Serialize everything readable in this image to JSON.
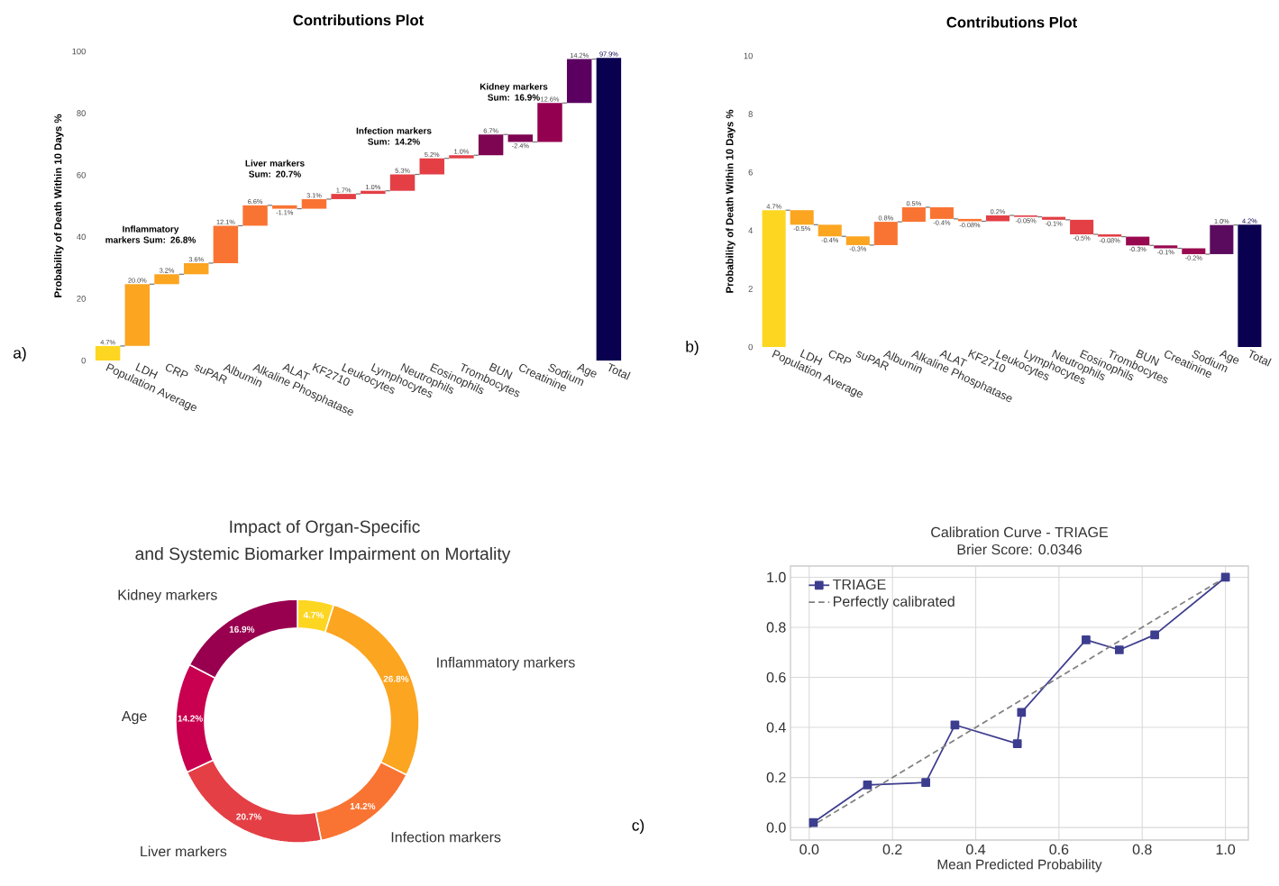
{
  "chart_data": [
    {
      "type": "bar",
      "title": "Contributions Plot",
      "ylabel": "Probability of Death Within 10 Days %",
      "categories": [
        "Population Average",
        "LDH",
        "CRP",
        "suPAR",
        "Albumin",
        "Alkaline Phosphatase",
        "ALAT",
        "KF2710",
        "Leukocytes",
        "Lymphocytes",
        "Neutrophils",
        "Eosinophils",
        "Trombocytes",
        "BUN",
        "Creatinine",
        "Sodium",
        "Age",
        "Total"
      ],
      "values": [
        4.7,
        20.0,
        3.2,
        3.6,
        12.1,
        6.6,
        -1.1,
        3.1,
        1.7,
        1.0,
        5.3,
        5.2,
        1.0,
        6.7,
        -2.4,
        12.6,
        14.2,
        97.9
      ],
      "base": [
        0,
        4.7,
        24.7,
        27.9,
        31.5,
        43.6,
        50.2,
        49.1,
        52.2,
        53.9,
        54.9,
        60.2,
        65.4,
        66.4,
        73.1,
        70.7,
        83.3,
        0
      ],
      "colors": [
        "#fdd622",
        "#fba520",
        "#fba520",
        "#fba520",
        "#f97432",
        "#f97432",
        "#f97432",
        "#f97432",
        "#e33f45",
        "#e33f45",
        "#e33f45",
        "#e33f45",
        "#e33f45",
        "#7d0552",
        "#7d0552",
        "#930050",
        "#5b0060",
        "#0a0050"
      ],
      "value_labels": [
        "4.7%",
        "20.0%",
        "3.2%",
        "3.6%",
        "12.1%",
        "6.6%",
        "-1.1%",
        "3.1%",
        "1.7%",
        "1.0%",
        "5.3%",
        "5.2%",
        "1.0%",
        "6.7%",
        "-2.4%",
        "12.6%",
        "14.2%",
        "97.9%"
      ],
      "ylim": [
        0,
        100
      ],
      "yticks": [
        0,
        20,
        40,
        60,
        80,
        100
      ],
      "annotations": [
        "a)",
        "Inflammatory markers Sum: 26.8%",
        "Liver markers Sum: 20.7%",
        "Infection markers Sum: 14.2%",
        "Kidney markers Sum: 16.9%"
      ]
    },
    {
      "type": "bar",
      "title": "Contributions Plot",
      "ylabel": "Probability of Death Within 10 Days %",
      "categories": [
        "Population Average",
        "LDH",
        "CRP",
        "suPAR",
        "Albumin",
        "Alkaline Phosphatase",
        "ALAT",
        "KF2710",
        "Leukocytes",
        "Lymphocytes",
        "Neutrophils",
        "Eosinophils",
        "Trombocytes",
        "BUN",
        "Creatinine",
        "Sodium",
        "Age",
        "Total"
      ],
      "values": [
        4.7,
        -0.5,
        -0.4,
        -0.3,
        0.8,
        0.5,
        -0.4,
        -0.08,
        0.2,
        -0.05,
        -0.1,
        -0.5,
        -0.08,
        -0.3,
        -0.1,
        -0.2,
        1.0,
        4.2
      ],
      "base": [
        0,
        4.7,
        4.2,
        3.8,
        3.5,
        4.3,
        4.8,
        4.4,
        4.32,
        4.52,
        4.47,
        4.37,
        3.87,
        3.79,
        3.49,
        3.39,
        3.19,
        0
      ],
      "colors": [
        "#fdd622",
        "#fba520",
        "#fba520",
        "#fba520",
        "#f97432",
        "#f97432",
        "#f97432",
        "#f97432",
        "#e33f45",
        "#e33f45",
        "#e33f45",
        "#e33f45",
        "#e33f45",
        "#980a50",
        "#980a50",
        "#980a50",
        "#5b0b5e",
        "#0a0050"
      ],
      "value_labels": [
        "4.7%",
        "-0.5%",
        "-0.4%",
        "-0.3%",
        "0.8%",
        "0.5%",
        "-0.4%",
        "-0.08%",
        "0.2%",
        "-0.05%",
        "-0.1%",
        "-0.5%",
        "-0.08%",
        "-0.3%",
        "-0.1%",
        "-0.2%",
        "1.0%",
        "4.2%"
      ],
      "ylim": [
        0,
        10
      ],
      "yticks": [
        0,
        2,
        4,
        6,
        8,
        10
      ],
      "annotations": [
        "b)"
      ]
    },
    {
      "type": "donut",
      "title": "Impact of Organ-Specific",
      "subtitle": "and Systemic Biomarker Impairment on Mortality",
      "categories": [
        null,
        "Inflammatory markers",
        "Infection markers",
        "Liver markers",
        "Age",
        "Kidney markers"
      ],
      "values": [
        4.7,
        26.8,
        14.2,
        20.7,
        14.2,
        16.9
      ],
      "colors": [
        "#fdd622",
        "#fba520",
        "#f97432",
        "#e33f45",
        "#c8004f",
        "#98004f"
      ],
      "value_labels": [
        "4.7%",
        "26.8%",
        "14.2%",
        "20.7%",
        "14.2%",
        "16.9%"
      ]
    },
    {
      "type": "line",
      "title": "Calibration Curve - TRIAGE",
      "subtitle": "Brier Score: 0.0346",
      "xlabel": "Mean Predicted Probability",
      "series": [
        {
          "name": "TRIAGE",
          "color": "#3d3d8f",
          "marker": "square",
          "line_style": "solid",
          "x": [
            0.01,
            0.14,
            0.28,
            0.35,
            0.5,
            0.51,
            0.665,
            0.745,
            0.83,
            1.0
          ],
          "values": [
            0.02,
            0.17,
            0.18,
            0.41,
            0.335,
            0.46,
            0.75,
            0.71,
            0.77,
            1.0
          ]
        },
        {
          "name": "Perfectly calibrated",
          "color": "#808080",
          "marker": "none",
          "line_style": "dashed",
          "x": [
            0,
            1
          ],
          "values": [
            0,
            1
          ]
        }
      ],
      "xlim": [
        -0.045,
        1.055
      ],
      "ylim": [
        -0.05,
        1.045
      ],
      "xticks": [
        {
          "value": 0,
          "label": "0.0"
        },
        {
          "value": 0.2,
          "label": "0.2"
        },
        {
          "value": 0.4,
          "label": "0.4"
        },
        {
          "value": 0.6,
          "label": "0.6"
        },
        {
          "value": 0.8,
          "label": "0.8"
        },
        {
          "value": 1,
          "label": "1.0"
        }
      ],
      "yticks": [
        {
          "value": 0,
          "label": "0.0"
        },
        {
          "value": 0.2,
          "label": "0.2"
        },
        {
          "value": 0.4,
          "label": "0.4"
        },
        {
          "value": 0.6,
          "label": "0.6"
        },
        {
          "value": 0.8,
          "label": "0.8"
        },
        {
          "value": 1,
          "label": "1.0"
        }
      ],
      "grid": true,
      "legend": "top left",
      "annotations": [
        "c)"
      ]
    }
  ]
}
